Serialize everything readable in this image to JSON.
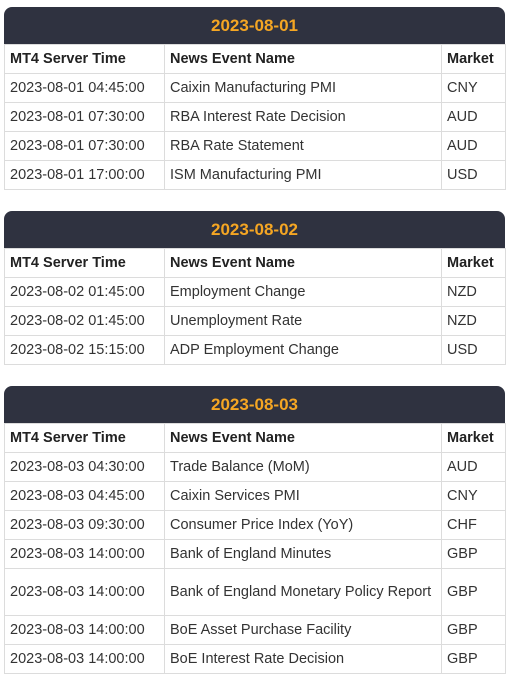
{
  "columns": {
    "time": "MT4 Server Time",
    "event": "News Event Name",
    "market": "Market"
  },
  "days": [
    {
      "date": "2023-08-01",
      "rows": [
        {
          "time": "2023-08-01 04:45:00",
          "event": "Caixin Manufacturing PMI",
          "market": "CNY"
        },
        {
          "time": "2023-08-01 07:30:00",
          "event": "RBA Interest Rate Decision",
          "market": "AUD"
        },
        {
          "time": "2023-08-01 07:30:00",
          "event": "RBA Rate Statement",
          "market": "AUD"
        },
        {
          "time": "2023-08-01 17:00:00",
          "event": "ISM Manufacturing PMI",
          "market": "USD"
        }
      ]
    },
    {
      "date": "2023-08-02",
      "rows": [
        {
          "time": "2023-08-02 01:45:00",
          "event": "Employment Change",
          "market": "NZD"
        },
        {
          "time": "2023-08-02 01:45:00",
          "event": "Unemployment Rate",
          "market": "NZD"
        },
        {
          "time": "2023-08-02 15:15:00",
          "event": "ADP Employment Change",
          "market": "USD"
        }
      ]
    },
    {
      "date": "2023-08-03",
      "rows": [
        {
          "time": "2023-08-03 04:30:00",
          "event": "Trade Balance (MoM)",
          "market": "AUD"
        },
        {
          "time": "2023-08-03 04:45:00",
          "event": "Caixin Services PMI",
          "market": "CNY"
        },
        {
          "time": "2023-08-03 09:30:00",
          "event": "Consumer Price Index (YoY)",
          "market": "CHF"
        },
        {
          "time": "2023-08-03 14:00:00",
          "event": "Bank of England Minutes",
          "market": "GBP"
        },
        {
          "time": "2023-08-03 14:00:00",
          "event": "Bank of England Monetary Policy Report",
          "market": "GBP"
        },
        {
          "time": "2023-08-03 14:00:00",
          "event": "BoE Asset Purchase Facility",
          "market": "GBP"
        },
        {
          "time": "2023-08-03 14:00:00",
          "event": "BoE Interest Rate Decision",
          "market": "GBP"
        }
      ]
    }
  ],
  "colors": {
    "header_bg": "#2f3240",
    "date_text": "#f5a623"
  }
}
